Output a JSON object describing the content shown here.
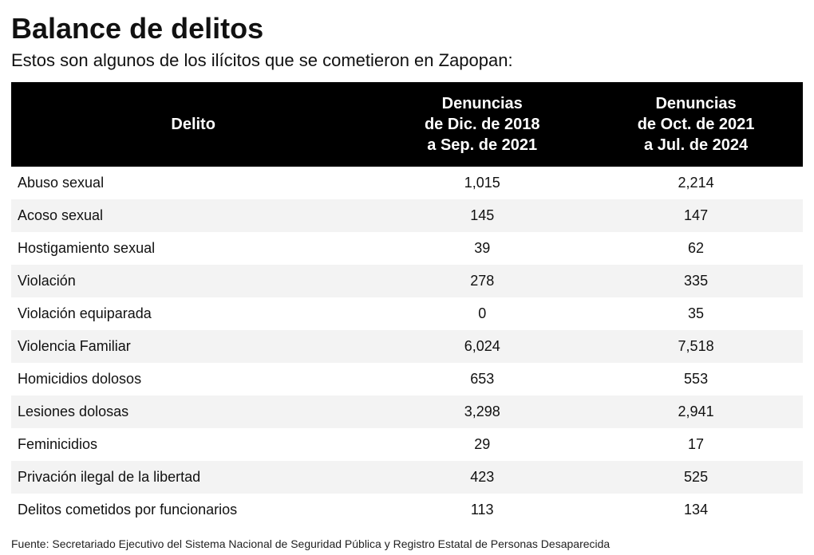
{
  "title": "Balance de delitos",
  "subtitle": "Estos son algunos de los ilícitos que se cometieron en Zapopan:",
  "table": {
    "type": "table",
    "header_background": "#000000",
    "header_text_color": "#ffffff",
    "row_alt_color": "#f3f3f3",
    "row_base_color": "#ffffff",
    "text_color": "#111111",
    "header_fontsize": 20,
    "cell_fontsize": 18,
    "columns": [
      {
        "key": "delito",
        "label": "Delito",
        "align": "left",
        "width_pct": 46
      },
      {
        "key": "p1",
        "label_lines": [
          "Denuncias",
          "de Dic. de 2018",
          "a Sep. de 2021"
        ],
        "align": "center",
        "width_pct": 27
      },
      {
        "key": "p2",
        "label_lines": [
          "Denuncias",
          "de Oct. de 2021",
          "a Jul. de 2024"
        ],
        "align": "center",
        "width_pct": 27
      }
    ],
    "rows": [
      {
        "delito": "Abuso sexual",
        "p1": "1,015",
        "p2": "2,214"
      },
      {
        "delito": "Acoso sexual",
        "p1": "145",
        "p2": "147"
      },
      {
        "delito": "Hostigamiento sexual",
        "p1": "39",
        "p2": "62"
      },
      {
        "delito": "Violación",
        "p1": "278",
        "p2": "335"
      },
      {
        "delito": "Violación equiparada",
        "p1": "0",
        "p2": "35"
      },
      {
        "delito": "Violencia Familiar",
        "p1": "6,024",
        "p2": "7,518"
      },
      {
        "delito": "Homicidios dolosos",
        "p1": "653",
        "p2": "553"
      },
      {
        "delito": "Lesiones dolosas",
        "p1": "3,298",
        "p2": "2,941"
      },
      {
        "delito": "Feminicidios",
        "p1": "29",
        "p2": "17"
      },
      {
        "delito": "Privación ilegal de la libertad",
        "p1": "423",
        "p2": "525"
      },
      {
        "delito": "Delitos cometidos por funcionarios",
        "p1": "113",
        "p2": "134"
      }
    ]
  },
  "source": "Fuente: Secretariado Ejecutivo del Sistema Nacional de Seguridad Pública y Registro Estatal de Personas Desaparecida"
}
